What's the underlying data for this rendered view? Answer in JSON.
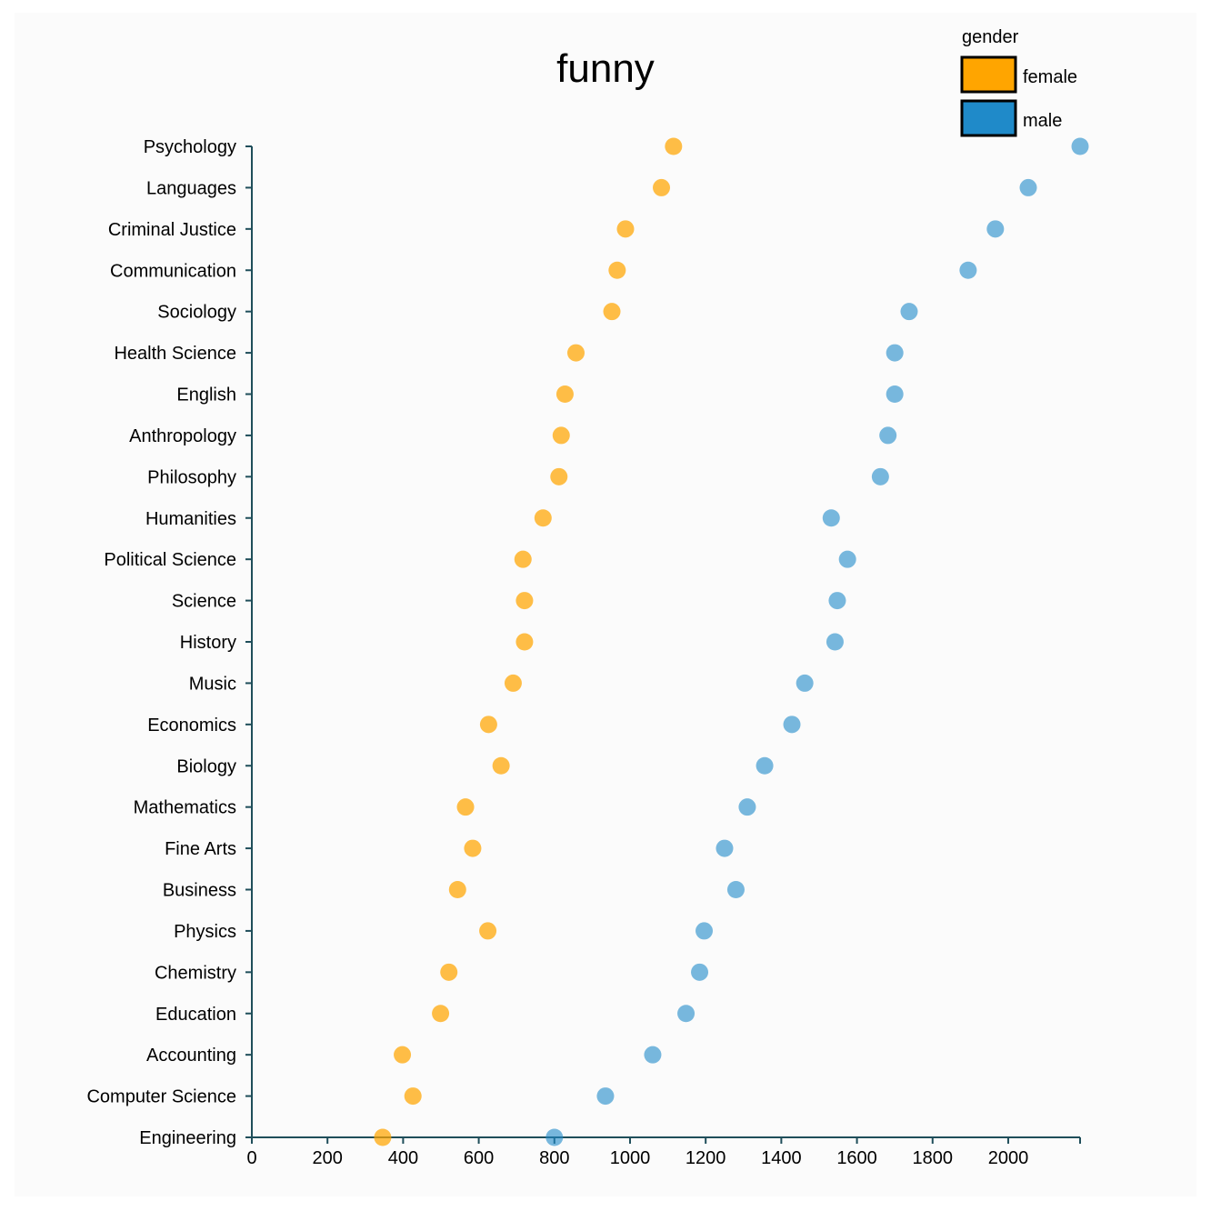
{
  "chart_data": {
    "type": "scatter",
    "title": "funny",
    "xlabel": "",
    "ylabel": "",
    "xlim": [
      0,
      2190
    ],
    "x_ticks": [
      "0",
      "200",
      "400",
      "600",
      "800",
      "1000",
      "1200",
      "1400",
      "1600",
      "1800",
      "2000"
    ],
    "x_tick_values": [
      0,
      200,
      400,
      600,
      800,
      1000,
      1200,
      1400,
      1600,
      1800,
      2000
    ],
    "categories": [
      "Psychology",
      "Languages",
      "Criminal Justice",
      "Communication",
      "Sociology",
      "Health Science",
      "English",
      "Anthropology",
      "Philosophy",
      "Humanities",
      "Political Science",
      "Science",
      "History",
      "Music",
      "Economics",
      "Biology",
      "Mathematics",
      "Fine Arts",
      "Business",
      "Physics",
      "Chemistry",
      "Education",
      "Accounting",
      "Computer Science",
      "Engineering"
    ],
    "legend_title": "gender",
    "legend_position": "top-right",
    "series": [
      {
        "name": "female",
        "color": "#ffa500",
        "values": [
          1115,
          1083,
          988,
          966,
          952,
          857,
          828,
          818,
          812,
          770,
          717,
          721,
          721,
          691,
          626,
          659,
          565,
          584,
          544,
          624,
          521,
          499,
          398,
          426,
          346
        ]
      },
      {
        "name": "male",
        "color": "#1f8ac9",
        "values": [
          2190,
          2053,
          1966,
          1894,
          1738,
          1700,
          1700,
          1682,
          1662,
          1532,
          1575,
          1548,
          1542,
          1462,
          1428,
          1356,
          1310,
          1250,
          1280,
          1196,
          1184,
          1148,
          1060,
          935,
          800
        ]
      }
    ]
  }
}
